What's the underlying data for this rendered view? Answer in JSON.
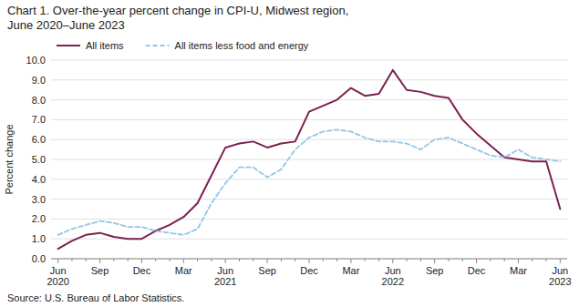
{
  "chart_data": {
    "type": "line",
    "title": "Chart 1. Over-the-year percent change in CPI-U, Midwest region,",
    "subtitle": "June 2020–June 2023",
    "ylabel": "Percent change",
    "source": "Source: U.S. Bureau of Labor Statistics.",
    "categories": [
      "Jun\n2020",
      null,
      null,
      "Sep",
      null,
      null,
      "Dec",
      null,
      null,
      "Mar",
      null,
      null,
      "Jun\n2021",
      null,
      null,
      "Sep",
      null,
      null,
      "Dec",
      null,
      null,
      "Mar",
      null,
      null,
      "Jun\n2022",
      null,
      null,
      "Sep",
      null,
      null,
      "Dec",
      null,
      null,
      "Mar",
      null,
      null,
      "Jun\n2023"
    ],
    "series": [
      {
        "name": "All items",
        "color": "#7B2150",
        "line_style": "solid",
        "values": [
          0.5,
          0.9,
          1.2,
          1.3,
          1.1,
          1.0,
          1.0,
          1.4,
          1.7,
          2.1,
          2.8,
          4.2,
          5.6,
          5.8,
          5.9,
          5.6,
          5.8,
          5.9,
          7.4,
          7.7,
          8.0,
          8.6,
          8.2,
          8.3,
          9.5,
          8.5,
          8.4,
          8.2,
          8.1,
          7.0,
          6.3,
          5.7,
          5.1,
          5.0,
          4.9,
          4.9,
          2.5
        ]
      },
      {
        "name": "All items less food and energy",
        "color": "#91C6E7",
        "line_style": "dashed",
        "values": [
          1.2,
          1.5,
          1.7,
          1.9,
          1.8,
          1.6,
          1.6,
          1.4,
          1.3,
          1.2,
          1.5,
          2.8,
          3.8,
          4.6,
          4.6,
          4.1,
          4.5,
          5.5,
          6.1,
          6.4,
          6.5,
          6.4,
          6.1,
          5.9,
          5.9,
          5.8,
          5.5,
          6.0,
          6.1,
          5.8,
          5.5,
          5.2,
          5.1,
          5.5,
          5.1,
          5.0,
          4.9
        ]
      }
    ],
    "ylim": [
      0.0,
      10.0
    ],
    "yticks": [
      {
        "value": 0.0,
        "label": "0.0"
      },
      {
        "value": 1.0,
        "label": "1.0"
      },
      {
        "value": 2.0,
        "label": "2.0"
      },
      {
        "value": 3.0,
        "label": "3.0"
      },
      {
        "value": 4.0,
        "label": "4.0"
      },
      {
        "value": 5.0,
        "label": "5.0"
      },
      {
        "value": 6.0,
        "label": "6.0"
      },
      {
        "value": 7.0,
        "label": "7.0"
      },
      {
        "value": 8.0,
        "label": "8.0"
      },
      {
        "value": 9.0,
        "label": "9.0"
      },
      {
        "value": 10.0,
        "label": "10.0"
      }
    ],
    "grid": true,
    "legend": "top"
  }
}
